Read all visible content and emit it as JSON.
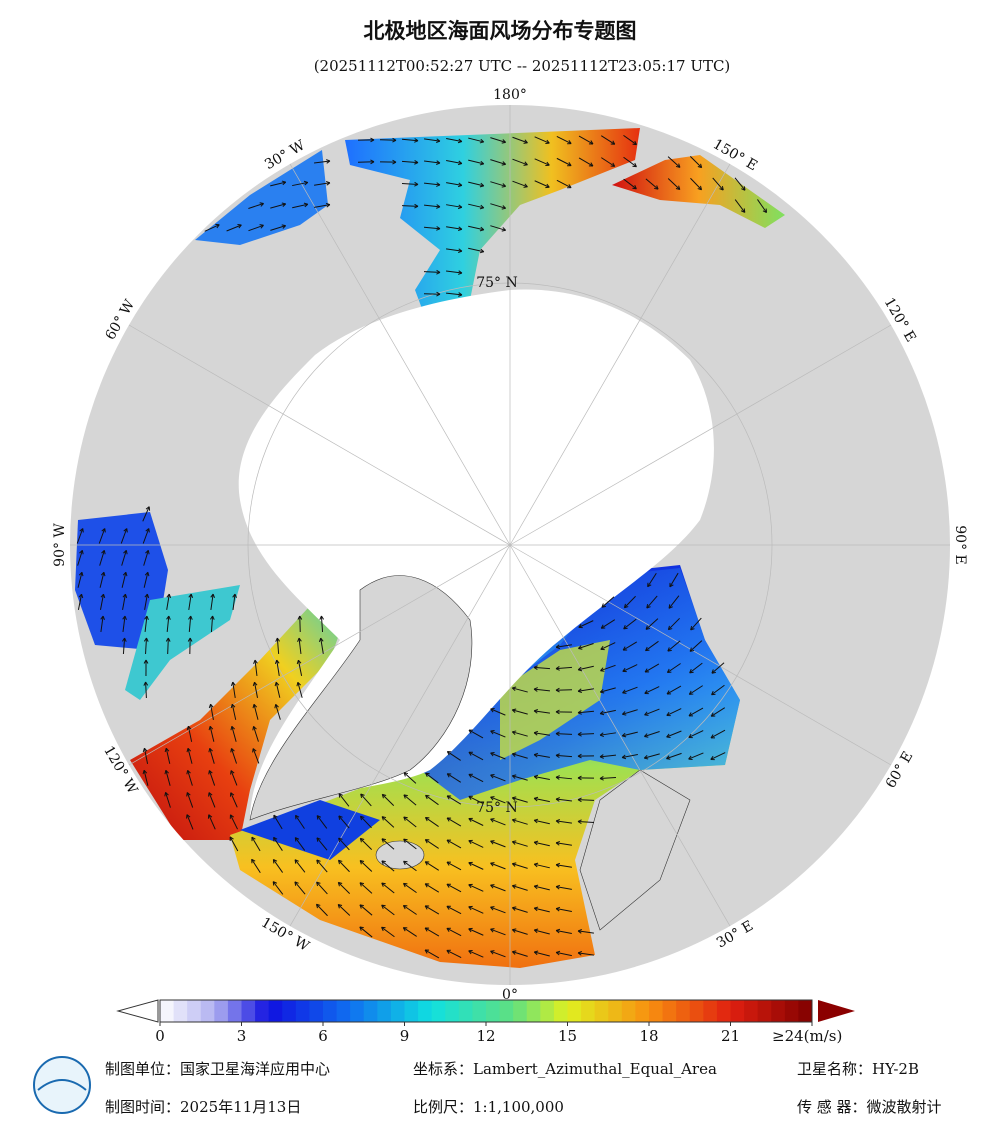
{
  "header": {
    "title": "北极地区海面风场分布专题图",
    "subtitle": "(20251112T00:52:27 UTC -- 20251112T23:05:17 UTC)"
  },
  "graticule": [
    "180°",
    "150° E",
    "120° E",
    "90° E",
    "60° E",
    "30° E",
    "0°",
    "30° W",
    "60° W",
    "90° W",
    "120° W",
    "150° W"
  ],
  "parallels": [
    "75° N",
    "75° N"
  ],
  "colorbar": {
    "range": [
      0,
      24
    ],
    "ticks": [
      0,
      3,
      6,
      9,
      12,
      15,
      18,
      21,
      {
        "value": 24,
        "label": "≥24(m/s)"
      }
    ]
  },
  "footer": {
    "unit": "制图单位：国家卫星海洋应用中心",
    "crs": "坐标系：Lambert_Azimuthal_Equal_Area",
    "satellite": "卫星名称：HY-2B",
    "date": "制图时间：2025年11月13日",
    "scale": "比例尺：1:1,100,000",
    "sensor": "传 感 器：微波散射计"
  }
}
